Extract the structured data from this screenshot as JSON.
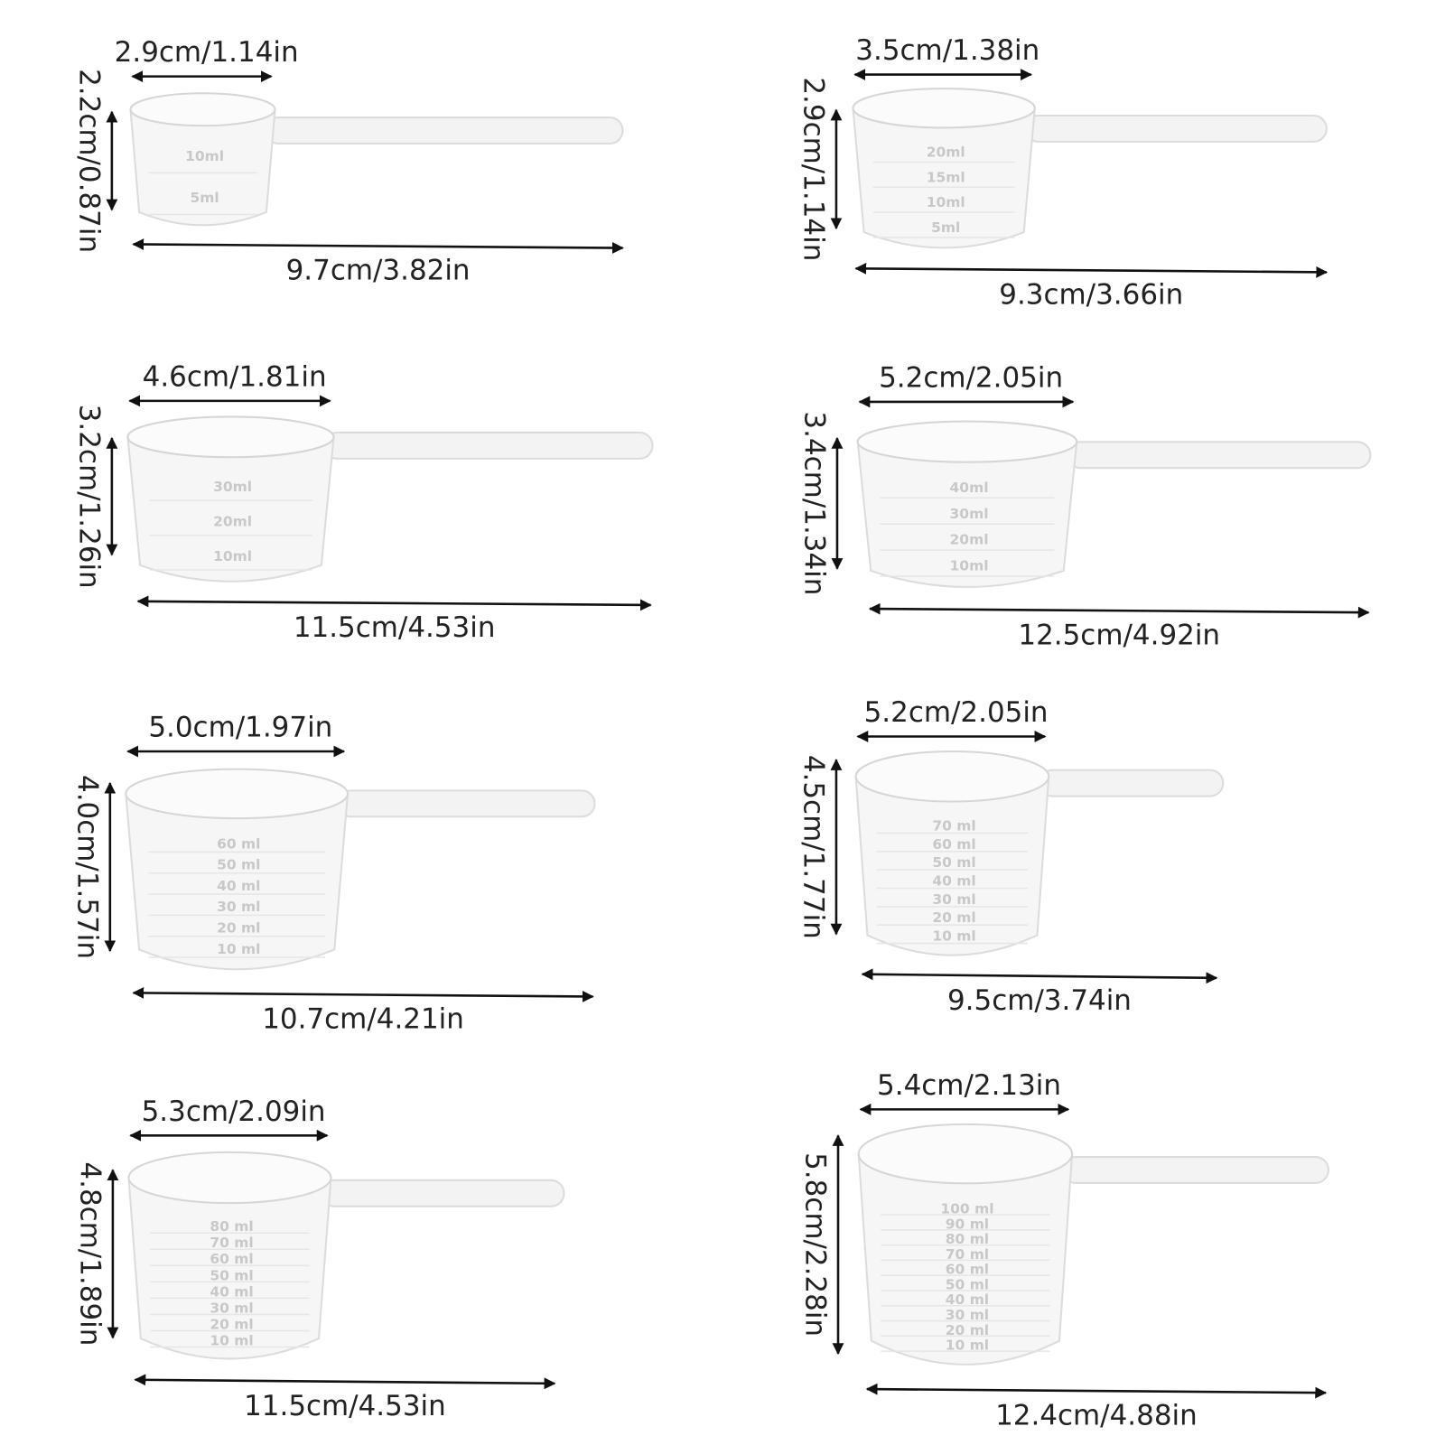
{
  "items": [
    {
      "width": "2.9cm/1.14in",
      "height": "2.2cm/0.87in",
      "length": "9.7cm/3.82in",
      "marks": [
        "10ml",
        "5ml"
      ]
    },
    {
      "width": "3.5cm/1.38in",
      "height": "2.9cm/1.14in",
      "length": "9.3cm/3.66in",
      "marks": [
        "20ml",
        "15ml",
        "10ml",
        "5ml"
      ]
    },
    {
      "width": "4.6cm/1.81in",
      "height": "3.2cm/1.26in",
      "length": "11.5cm/4.53in",
      "marks": [
        "30ml",
        "20ml",
        "10ml"
      ]
    },
    {
      "width": "5.2cm/2.05in",
      "height": "3.4cm/1.34in",
      "length": "12.5cm/4.92in",
      "marks": [
        "40ml",
        "30ml",
        "20ml",
        "10ml"
      ]
    },
    {
      "width": "5.0cm/1.97in",
      "height": "4.0cm/1.57in",
      "length": "10.7cm/4.21in",
      "marks": [
        "60 ml",
        "50 ml",
        "40 ml",
        "30 ml",
        "20 ml",
        "10 ml"
      ]
    },
    {
      "width": "5.2cm/2.05in",
      "height": "4.5cm/1.77in",
      "length": "9.5cm/3.74in",
      "marks": [
        "70 ml",
        "60 ml",
        "50 ml",
        "40 ml",
        "30 ml",
        "20 ml",
        "10 ml"
      ]
    },
    {
      "width": "5.3cm/2.09in",
      "height": "4.8cm/1.89in",
      "length": "11.5cm/4.53in",
      "marks": [
        "80 ml",
        "70 ml",
        "60 ml",
        "50 ml",
        "40 ml",
        "30 ml",
        "20 ml",
        "10 ml"
      ]
    },
    {
      "width": "5.4cm/2.13in",
      "height": "5.8cm/2.28in",
      "length": "12.4cm/4.88in",
      "marks": [
        "100 ml",
        "90 ml",
        "80 ml",
        "70 ml",
        "60 ml",
        "50 ml",
        "40 ml",
        "30 ml",
        "20 ml",
        "10 ml"
      ]
    }
  ]
}
